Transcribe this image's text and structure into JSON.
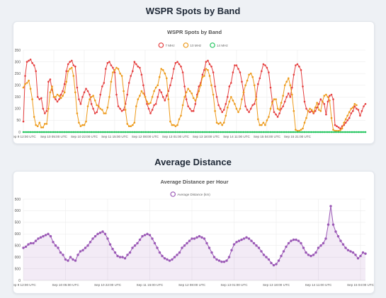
{
  "page": {
    "section1_heading": "WSPR Spots by Band",
    "section2_heading": "Average Distance"
  },
  "x_tick_labels": [
    "Sep 9 12:00 UTC",
    "Sep 10 05:00 UTC",
    "Sep 10 22:00 UTC",
    "Sep 11 15:00 UTC",
    "Sep 12 08:00 UTC",
    "Sep 13 01:00 UTC",
    "Sep 13 18:00 UTC",
    "Sep 14 11:00 UTC",
    "Sep 15 04:00 UTC",
    "Sep 15 21:00 UTC"
  ],
  "chart_data": [
    {
      "type": "line",
      "title": "WSPR Spots by Band",
      "xlabel": "",
      "ylabel": "",
      "ylim": [
        0,
        350
      ],
      "yticks": [
        0,
        50,
        100,
        150,
        200,
        250,
        300,
        350
      ],
      "grid": true,
      "legend_position": "top",
      "series": [
        {
          "name": "7 MHz",
          "color": "#e53e3e",
          "values": [
            45,
            240,
            300,
            305,
            310,
            295,
            285,
            260,
            150,
            140,
            145,
            100,
            80,
            90,
            215,
            225,
            180,
            150,
            140,
            130,
            140,
            160,
            175,
            205,
            260,
            290,
            300,
            305,
            285,
            280,
            190,
            140,
            120,
            150,
            170,
            185,
            175,
            160,
            120,
            100,
            80,
            85,
            110,
            160,
            195,
            210,
            270,
            295,
            300,
            285,
            275,
            255,
            160,
            110,
            100,
            90,
            95,
            120,
            160,
            210,
            240,
            260,
            300,
            290,
            280,
            275,
            245,
            200,
            150,
            120,
            100,
            80,
            95,
            115,
            120,
            150,
            180,
            170,
            150,
            135,
            155,
            175,
            200,
            230,
            270,
            295,
            300,
            290,
            280,
            255,
            195,
            140,
            110,
            100,
            90,
            90,
            120,
            160,
            195,
            210,
            245,
            265,
            300,
            305,
            290,
            280,
            255,
            195,
            150,
            115,
            100,
            85,
            95,
            120,
            150,
            195,
            210,
            255,
            285,
            285,
            270,
            255,
            215,
            170,
            110,
            95,
            85,
            100,
            115,
            120,
            150,
            205,
            230,
            260,
            290,
            285,
            275,
            255,
            190,
            130,
            85,
            75,
            65,
            80,
            100,
            110,
            130,
            150,
            165,
            150,
            190,
            245,
            285,
            290,
            280,
            265,
            195,
            130,
            100,
            90,
            85,
            90,
            80,
            90,
            105,
            120,
            140,
            130,
            120,
            75,
            130,
            155,
            160,
            140,
            30,
            25,
            20,
            15,
            25,
            30,
            40,
            50,
            60,
            80,
            90,
            110,
            100,
            95,
            70,
            90,
            110,
            120
          ]
        },
        {
          "name": "10 MHz",
          "color": "#ed9a1a",
          "values": [
            190,
            205,
            210,
            220,
            185,
            140,
            65,
            30,
            25,
            40,
            20,
            20,
            35,
            35,
            100,
            170,
            195,
            150,
            150,
            160,
            155,
            145,
            155,
            170,
            215,
            260,
            270,
            275,
            240,
            170,
            80,
            40,
            25,
            30,
            30,
            45,
            110,
            140,
            150,
            155,
            135,
            115,
            110,
            100,
            95,
            80,
            80,
            105,
            150,
            215,
            255,
            265,
            275,
            270,
            250,
            240,
            175,
            95,
            35,
            25,
            25,
            30,
            40,
            110,
            140,
            155,
            175,
            165,
            150,
            130,
            120,
            125,
            150,
            175,
            190,
            200,
            235,
            270,
            265,
            250,
            230,
            140,
            45,
            30,
            30,
            25,
            30,
            55,
            70,
            115,
            150,
            170,
            185,
            175,
            165,
            145,
            135,
            150,
            175,
            200,
            235,
            240,
            270,
            265,
            240,
            200,
            160,
            90,
            40,
            35,
            40,
            30,
            40,
            70,
            105,
            130,
            150,
            135,
            120,
            100,
            85,
            100,
            140,
            170,
            200,
            220,
            245,
            250,
            235,
            200,
            140,
            55,
            30,
            30,
            40,
            30,
            50,
            65,
            100,
            125,
            140,
            140,
            100,
            95,
            125,
            155,
            200,
            215,
            230,
            200,
            160,
            90,
            10,
            5,
            5,
            10,
            15,
            40,
            60,
            90,
            100,
            95,
            85,
            105,
            125,
            95,
            90,
            130,
            155,
            160,
            150,
            135,
            60,
            10,
            5,
            5,
            5,
            8,
            15,
            40,
            55,
            70,
            85,
            100,
            105,
            120,
            115
          ]
        },
        {
          "name": "14 MHz",
          "color": "#22c55e",
          "values": [
            0,
            0,
            0,
            0,
            0,
            0,
            0,
            0,
            0,
            0,
            0,
            0,
            0,
            0,
            0,
            0,
            0,
            0,
            0,
            0,
            0,
            0,
            0,
            0,
            0,
            0,
            0,
            0,
            0,
            0,
            0,
            0,
            0,
            0,
            0,
            0,
            0,
            0,
            0,
            0,
            0,
            0,
            0,
            0,
            0,
            0,
            0,
            0,
            0,
            0,
            0,
            0,
            0,
            0,
            0,
            0,
            0,
            0,
            0,
            0,
            0,
            0,
            0,
            0,
            0,
            0,
            0,
            0,
            0,
            0,
            0,
            0,
            0,
            0,
            0,
            0,
            0,
            0,
            0,
            0,
            0,
            0,
            0,
            0,
            0,
            0,
            0,
            0,
            0,
            0,
            0,
            0,
            0,
            0,
            0,
            0,
            0,
            0,
            0,
            0,
            0,
            0,
            0,
            0,
            0,
            0,
            0,
            0,
            0,
            0,
            0,
            0,
            0,
            0,
            0,
            0,
            0,
            0,
            0,
            0,
            0,
            0,
            0,
            0,
            0,
            0,
            0,
            0,
            0,
            0,
            0,
            0,
            0,
            0,
            0,
            0,
            0,
            0,
            0,
            0,
            0,
            0,
            0,
            0,
            0,
            0,
            0,
            0,
            0,
            0,
            0,
            0,
            0,
            0,
            0,
            0,
            0,
            0,
            0,
            0,
            0,
            0,
            0,
            0,
            0,
            0,
            0,
            0,
            0,
            0,
            0,
            0,
            0,
            0,
            0,
            0,
            0,
            0,
            0,
            0,
            0,
            0,
            0,
            0,
            0,
            0,
            0,
            0,
            0,
            0,
            0,
            0
          ]
        }
      ]
    },
    {
      "type": "area",
      "title": "Average Distance per Hour",
      "xlabel": "",
      "ylabel": "",
      "ylim": [
        0,
        3500
      ],
      "yticks": [
        0,
        500,
        1000,
        1500,
        2000,
        2500,
        3000,
        3500
      ],
      "ytick_labels": [
        "0",
        "500",
        "1 000",
        "1 500",
        "2 000",
        "2 500",
        "3 000",
        "3 500"
      ],
      "grid": true,
      "legend_position": "top",
      "series": [
        {
          "name": "Average Distance (km)",
          "color": "#9b59b6",
          "values": [
            1400,
            1450,
            1550,
            1600,
            1600,
            1700,
            1800,
            1850,
            1900,
            1950,
            2000,
            1900,
            1650,
            1500,
            1400,
            1200,
            1100,
            900,
            850,
            1000,
            900,
            850,
            1100,
            1250,
            1300,
            1400,
            1500,
            1650,
            1800,
            1900,
            2000,
            2050,
            2100,
            2000,
            1800,
            1550,
            1350,
            1200,
            1050,
            1000,
            1000,
            950,
            1100,
            1200,
            1400,
            1500,
            1600,
            1750,
            1900,
            1950,
            2000,
            1950,
            1800,
            1600,
            1400,
            1200,
            1050,
            950,
            900,
            850,
            900,
            1000,
            1100,
            1200,
            1400,
            1500,
            1600,
            1700,
            1800,
            1800,
            1850,
            1900,
            1850,
            1800,
            1600,
            1400,
            1200,
            1000,
            900,
            850,
            800,
            800,
            850,
            1000,
            1300,
            1550,
            1650,
            1700,
            1750,
            1800,
            1850,
            1800,
            1700,
            1600,
            1500,
            1400,
            1250,
            1100,
            1000,
            900,
            750,
            650,
            700,
            850,
            1050,
            1250,
            1450,
            1600,
            1700,
            1750,
            1750,
            1700,
            1600,
            1400,
            1200,
            1100,
            1050,
            1100,
            1200,
            1400,
            1500,
            1600,
            1800,
            2400,
            3200,
            2400,
            2100,
            1900,
            1700,
            1550,
            1400,
            1300,
            1250,
            1200,
            1100,
            950,
            1050,
            1200,
            1150
          ]
        }
      ]
    }
  ]
}
